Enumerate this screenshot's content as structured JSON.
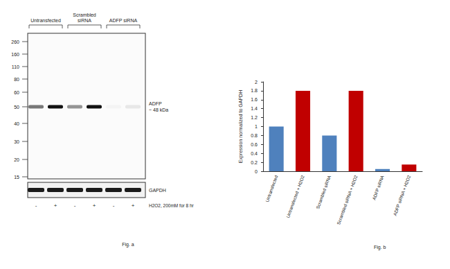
{
  "chart_data": {
    "type": "bar",
    "categories": [
      "Untransfected",
      "Untransfected + H2O2",
      "Scrambled siRNA",
      "Scrambled siRNA + H2O2",
      "ADFP siRNA",
      "ADFP siRNA + H2O2"
    ],
    "values": [
      1,
      1.8,
      0.8,
      1.8,
      0.05,
      0.15
    ],
    "colors": [
      "#4f81bd",
      "#c00000",
      "#4f81bd",
      "#c00000",
      "#4f81bd",
      "#c00000"
    ],
    "y_label": "Expression normalized to GAPDH",
    "ylim": [
      0,
      2
    ],
    "yticks": [
      0,
      0.2,
      0.4,
      0.6,
      0.8,
      1,
      1.2,
      1.4,
      1.6,
      1.8,
      2
    ],
    "grid": false,
    "annotations": [
      "Fig. b"
    ]
  },
  "blot": {
    "groups": [
      "Untransfected",
      "Scrambled siRNA",
      "ADFP siRNA"
    ],
    "markers": [
      260,
      160,
      110,
      80,
      60,
      50,
      40,
      30,
      20,
      15
    ],
    "band_label": "ADFP",
    "band_size": "~ 48 kDa",
    "loading_control": "GAPDH",
    "treatment": [
      "-",
      "+",
      "-",
      "+",
      "-",
      "+"
    ],
    "treatment_label": "H2O2, 200mM for 8 hr",
    "caption": "Fig. a"
  }
}
